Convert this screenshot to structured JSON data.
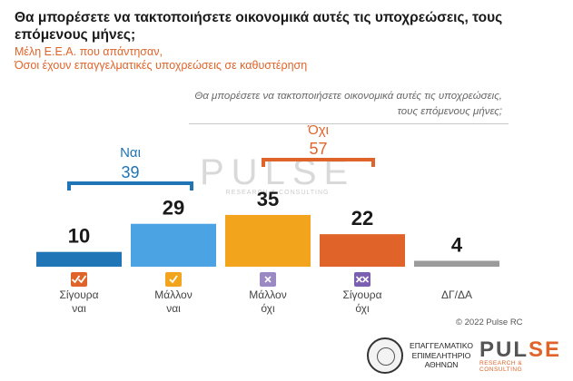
{
  "title": "Θα μπορέσετε να τακτοποιήσετε οικονομικά αυτές τις υποχρεώσεις, τους επόμενους μήνες;",
  "subtitle_1": "Μέλη Ε.Ε.Α. που απάντησαν,",
  "subtitle_2": "Όσοι έχουν επαγγελματικές υποχρεώσεις σε καθυστέρηση",
  "question_1": "Θα μπορέσετε να τακτοποιήσετε οικονομικά αυτές τις υποχρεώσεις,",
  "question_2": "τους επόμενους μήνες;",
  "watermark": {
    "main": "PULSE",
    "sub": "RESEARCH & CONSULTING"
  },
  "copyright": "© 2022 Pulse RC",
  "footer": {
    "chamber_1": "ΕΠΑΓΓΕΛΜΑΤΙΚΟ",
    "chamber_2": "ΕΠΙΜΕΛΗΤΗΡΙΟ",
    "chamber_3": "ΑΘΗΝΩΝ",
    "pulse_a": "PUL",
    "pulse_b": "SE",
    "pulse_tag": "RESEARCH & CONSULTING"
  },
  "chart_data": {
    "type": "bar",
    "categories": [
      [
        "Σίγουρα",
        "ναι"
      ],
      [
        "Μάλλον",
        "ναι"
      ],
      [
        "Μάλλον",
        "όχι"
      ],
      [
        "Σίγουρα",
        "όχι"
      ],
      [
        "ΔΓ/ΔΑ"
      ]
    ],
    "values": [
      10,
      29,
      35,
      22,
      4
    ],
    "colors": [
      "#1f75b5",
      "#4ba3e3",
      "#f2a51c",
      "#e0642a",
      "#9b9b9b"
    ],
    "icons": [
      "double-check-icon",
      "check-icon",
      "cross-icon",
      "double-cross-icon",
      ""
    ],
    "icon_colors": [
      "#e0642a",
      "#f2a51c",
      "#9b89c4",
      "#7b5fb0",
      ""
    ],
    "groups": [
      {
        "label": "Ναι",
        "value": "39",
        "from": 0,
        "to": 1,
        "color": "#1f75b5"
      },
      {
        "label": "Όχι",
        "value": "57",
        "from": 2,
        "to": 3,
        "color": "#e0642a"
      }
    ]
  }
}
